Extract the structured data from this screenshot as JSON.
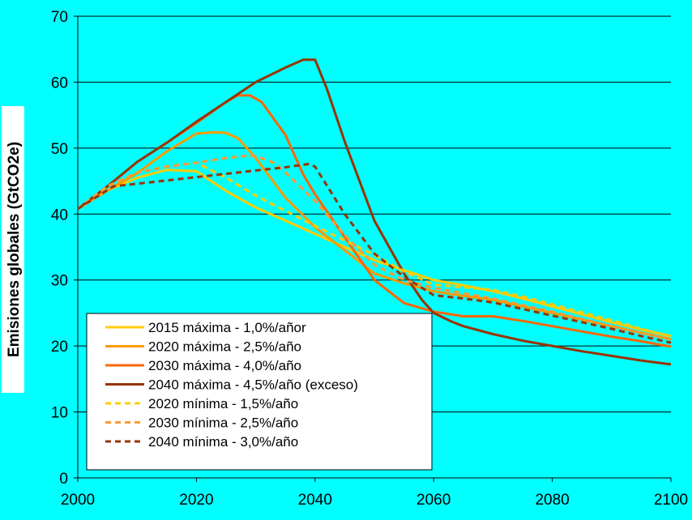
{
  "chart_data": {
    "type": "line",
    "title": "",
    "xlabel": "",
    "ylabel": "Emisiones globales (GtCO2e)",
    "xlim": [
      2000,
      2100
    ],
    "ylim": [
      0,
      70
    ],
    "xticks": [
      2000,
      2020,
      2040,
      2060,
      2080,
      2100
    ],
    "yticks": [
      0,
      10,
      20,
      30,
      40,
      50,
      60,
      70
    ],
    "grid": "horizontal",
    "background": "#00FFFF",
    "legend_position": "bottom-left",
    "series": [
      {
        "name": "2015 máxima - 1,0%/añor",
        "color": "#FFCC00",
        "dash": false,
        "x": [
          2000,
          2005,
          2010,
          2015,
          2020,
          2025,
          2030,
          2035,
          2040,
          2045,
          2050,
          2055,
          2060,
          2065,
          2070,
          2075,
          2080,
          2085,
          2090,
          2095,
          2100
        ],
        "y": [
          40.8,
          43.6,
          45.5,
          46.7,
          46.5,
          43.5,
          41.0,
          39.0,
          37.0,
          35.0,
          33.0,
          31.5,
          30.0,
          29.2,
          28.3,
          27.2,
          26.0,
          24.8,
          23.6,
          22.5,
          21.5
        ]
      },
      {
        "name": "2020 máxima - 2,5%/año",
        "color": "#FF9900",
        "dash": false,
        "x": [
          2000,
          2005,
          2010,
          2015,
          2020,
          2023,
          2025,
          2027,
          2030,
          2035,
          2040,
          2045,
          2050,
          2055,
          2060,
          2065,
          2070,
          2075,
          2080,
          2085,
          2090,
          2095,
          2100
        ],
        "y": [
          40.8,
          43.6,
          46.2,
          49.5,
          52.2,
          52.4,
          52.3,
          51.5,
          48.5,
          42.5,
          38.0,
          34.5,
          31.0,
          29.5,
          28.3,
          27.6,
          27.0,
          26.0,
          25.0,
          24.0,
          23.0,
          22.0,
          21.0
        ]
      },
      {
        "name": "2030 máxima - 4,0%/año",
        "color": "#FF6600",
        "dash": false,
        "x": [
          2000,
          2005,
          2010,
          2015,
          2020,
          2025,
          2027,
          2029,
          2031,
          2035,
          2038,
          2040,
          2045,
          2050,
          2055,
          2060,
          2065,
          2070,
          2075,
          2080,
          2085,
          2090,
          2095,
          2100
        ],
        "y": [
          40.8,
          44.2,
          47.9,
          50.8,
          53.8,
          57.0,
          58.0,
          58.0,
          57.0,
          52.0,
          46.0,
          43.0,
          36.5,
          30.0,
          26.5,
          25.2,
          24.5,
          24.5,
          23.8,
          23.0,
          22.2,
          21.4,
          20.7,
          19.9
        ]
      },
      {
        "name": "2040 máxima - 4,5%/año (exceso)",
        "color": "#993300",
        "dash": false,
        "x": [
          2000,
          2005,
          2010,
          2015,
          2020,
          2025,
          2030,
          2035,
          2038,
          2040,
          2042,
          2045,
          2050,
          2055,
          2058,
          2060,
          2063,
          2065,
          2070,
          2075,
          2080,
          2085,
          2090,
          2095,
          2100
        ],
        "y": [
          40.8,
          44.2,
          47.9,
          50.8,
          54.0,
          57.0,
          60.0,
          62.2,
          63.4,
          63.4,
          59.0,
          51.0,
          39.0,
          31.0,
          27.0,
          25.0,
          23.7,
          23.0,
          21.8,
          20.8,
          20.0,
          19.2,
          18.5,
          17.8,
          17.2
        ]
      },
      {
        "name": "2020 mínima  - 1,5%/año",
        "color": "#FFCC00",
        "dash": true,
        "x": [
          2000,
          2005,
          2010,
          2015,
          2020,
          2025,
          2030,
          2035,
          2040,
          2045,
          2050,
          2055,
          2060,
          2065,
          2070,
          2075,
          2080,
          2085,
          2090,
          2095,
          2100
        ],
        "y": [
          40.8,
          44.2,
          46.3,
          47.2,
          47.8,
          45.5,
          42.8,
          40.5,
          38.2,
          36.0,
          33.8,
          31.3,
          29.3,
          28.9,
          28.5,
          27.5,
          26.3,
          25.1,
          23.9,
          22.6,
          21.4
        ]
      },
      {
        "name": "2030 mínima  - 2,5%/año",
        "color": "#FF9933",
        "dash": true,
        "x": [
          2000,
          2005,
          2010,
          2015,
          2020,
          2025,
          2028,
          2030,
          2033,
          2035,
          2040,
          2045,
          2050,
          2055,
          2060,
          2065,
          2070,
          2075,
          2080,
          2085,
          2090,
          2095,
          2100
        ],
        "y": [
          40.8,
          44.2,
          46.3,
          47.2,
          47.8,
          48.5,
          48.8,
          48.8,
          47.8,
          46.3,
          42.0,
          36.8,
          32.3,
          30.0,
          28.8,
          28.0,
          27.2,
          26.2,
          25.2,
          24.1,
          23.0,
          22.0,
          21.0
        ]
      },
      {
        "name": "2040 mínima  - 3,0%/año",
        "color": "#993300",
        "dash": true,
        "x": [
          2000,
          2006,
          2010,
          2015,
          2020,
          2025,
          2030,
          2035,
          2039,
          2040,
          2045,
          2050,
          2055,
          2060,
          2065,
          2070,
          2075,
          2080,
          2085,
          2090,
          2095,
          2100
        ],
        "y": [
          40.8,
          44.2,
          44.6,
          45.1,
          45.6,
          46.1,
          46.6,
          47.1,
          47.6,
          47.2,
          40.0,
          34.0,
          30.5,
          27.7,
          27.2,
          26.6,
          25.6,
          24.6,
          23.6,
          22.6,
          21.5,
          20.5
        ]
      }
    ]
  }
}
